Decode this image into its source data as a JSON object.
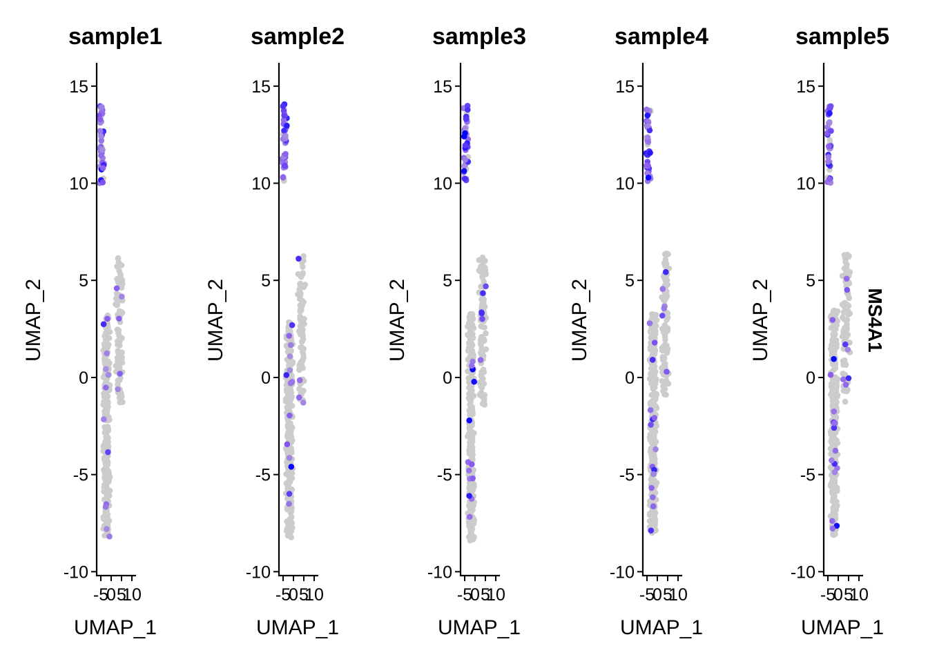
{
  "figure": {
    "feature_label": "MS4A1",
    "colors": {
      "low": "#cccccc",
      "mid": "#8a5cf0",
      "high": "#0000ff",
      "axis": "#000000",
      "background": "#ffffff"
    }
  },
  "chart_data": [
    {
      "type": "scatter",
      "title": "sample1",
      "xlabel": "UMAP_1",
      "ylabel": "UMAP_2",
      "xlim": [
        -7,
        12
      ],
      "ylim": [
        -10.2,
        16.2
      ],
      "x_ticks": [
        -5,
        0,
        5,
        10
      ],
      "x_tick_labels": [
        "-5",
        "0",
        "5",
        "10"
      ],
      "y_ticks": [
        -10,
        -5,
        0,
        5,
        10,
        15
      ],
      "y_tick_labels": [
        "-10",
        "-5",
        "0",
        "5",
        "10",
        "15"
      ],
      "grid": false,
      "color_scale": "grey-to-blue by MS4A1 expression",
      "clusters": [
        {
          "name": "top",
          "x_center": -4.6,
          "x_spread": 1.0,
          "y_min": 10.0,
          "y_max": 14.0,
          "n_points": 45,
          "expressed_fraction": 0.8
        },
        {
          "name": "right",
          "x_center": 3.8,
          "x_spread": 1.4,
          "y_min": -1.3,
          "y_max": 6.3,
          "n_points": 95,
          "expressed_fraction": 0.08
        },
        {
          "name": "lower-left",
          "x_center": -2.2,
          "x_spread": 1.3,
          "y_min": -8.2,
          "y_max": 3.2,
          "n_points": 330,
          "expressed_fraction": 0.05
        }
      ]
    },
    {
      "type": "scatter",
      "title": "sample2",
      "xlabel": "UMAP_1",
      "ylabel": "UMAP_2",
      "xlim": [
        -7,
        12
      ],
      "ylim": [
        -10.2,
        16.2
      ],
      "x_ticks": [
        -5,
        0,
        5,
        10
      ],
      "x_tick_labels": [
        "-5",
        "0",
        "5",
        "10"
      ],
      "y_ticks": [
        -10,
        -5,
        0,
        5,
        10,
        15
      ],
      "y_tick_labels": [
        "-10",
        "-5",
        "0",
        "5",
        "10",
        "15"
      ],
      "grid": false,
      "color_scale": "grey-to-blue by MS4A1 expression",
      "clusters": [
        {
          "name": "top",
          "x_center": -4.4,
          "x_spread": 1.0,
          "y_min": 10.1,
          "y_max": 14.1,
          "n_points": 45,
          "expressed_fraction": 0.8
        },
        {
          "name": "right",
          "x_center": 3.8,
          "x_spread": 1.5,
          "y_min": -1.3,
          "y_max": 6.4,
          "n_points": 95,
          "expressed_fraction": 0.06
        },
        {
          "name": "lower-left",
          "x_center": -2.0,
          "x_spread": 1.4,
          "y_min": -8.3,
          "y_max": 2.9,
          "n_points": 330,
          "expressed_fraction": 0.05
        }
      ]
    },
    {
      "type": "scatter",
      "title": "sample3",
      "xlabel": "UMAP_1",
      "ylabel": "UMAP_2",
      "xlim": [
        -7,
        12
      ],
      "ylim": [
        -10.2,
        16.2
      ],
      "x_ticks": [
        -5,
        0,
        5,
        10
      ],
      "x_tick_labels": [
        "-5",
        "0",
        "5",
        "10"
      ],
      "y_ticks": [
        -10,
        -5,
        0,
        5,
        10,
        15
      ],
      "y_tick_labels": [
        "-10",
        "-5",
        "0",
        "5",
        "10",
        "15"
      ],
      "grid": false,
      "color_scale": "grey-to-blue by MS4A1 expression",
      "clusters": [
        {
          "name": "top",
          "x_center": -4.6,
          "x_spread": 1.0,
          "y_min": 10.1,
          "y_max": 14.2,
          "n_points": 45,
          "expressed_fraction": 0.75
        },
        {
          "name": "right",
          "x_center": 3.6,
          "x_spread": 1.4,
          "y_min": -1.4,
          "y_max": 6.4,
          "n_points": 95,
          "expressed_fraction": 0.05
        },
        {
          "name": "lower-left",
          "x_center": -2.0,
          "x_spread": 1.3,
          "y_min": -8.4,
          "y_max": 3.3,
          "n_points": 330,
          "expressed_fraction": 0.04
        }
      ]
    },
    {
      "type": "scatter",
      "title": "sample4",
      "xlabel": "UMAP_1",
      "ylabel": "UMAP_2",
      "xlim": [
        -7,
        12
      ],
      "ylim": [
        -10.2,
        16.2
      ],
      "x_ticks": [
        -5,
        0,
        5,
        10
      ],
      "x_tick_labels": [
        "-5",
        "0",
        "5",
        "10"
      ],
      "y_ticks": [
        -10,
        -5,
        0,
        5,
        10,
        15
      ],
      "y_tick_labels": [
        "-10",
        "-5",
        "0",
        "5",
        "10",
        "15"
      ],
      "grid": false,
      "color_scale": "grey-to-blue by MS4A1 expression",
      "clusters": [
        {
          "name": "top",
          "x_center": -4.4,
          "x_spread": 1.0,
          "y_min": 10.0,
          "y_max": 13.8,
          "n_points": 45,
          "expressed_fraction": 0.8
        },
        {
          "name": "right",
          "x_center": 3.8,
          "x_spread": 1.5,
          "y_min": -1.0,
          "y_max": 6.4,
          "n_points": 95,
          "expressed_fraction": 0.07
        },
        {
          "name": "lower-left",
          "x_center": -2.0,
          "x_spread": 1.4,
          "y_min": -8.0,
          "y_max": 3.3,
          "n_points": 330,
          "expressed_fraction": 0.05
        }
      ]
    },
    {
      "type": "scatter",
      "title": "sample5",
      "xlabel": "UMAP_1",
      "ylabel": "UMAP_2",
      "xlim": [
        -7,
        12
      ],
      "ylim": [
        -10.2,
        16.2
      ],
      "x_ticks": [
        -5,
        0,
        5,
        10
      ],
      "x_tick_labels": [
        "-5",
        "0",
        "5",
        "10"
      ],
      "y_ticks": [
        -10,
        -5,
        0,
        5,
        10,
        15
      ],
      "y_tick_labels": [
        "-10",
        "-5",
        "0",
        "5",
        "10",
        "15"
      ],
      "grid": false,
      "color_scale": "grey-to-blue by MS4A1 expression",
      "clusters": [
        {
          "name": "top",
          "x_center": -4.4,
          "x_spread": 1.0,
          "y_min": 9.9,
          "y_max": 14.1,
          "n_points": 45,
          "expressed_fraction": 0.85
        },
        {
          "name": "right",
          "x_center": 3.8,
          "x_spread": 1.5,
          "y_min": -1.3,
          "y_max": 6.4,
          "n_points": 95,
          "expressed_fraction": 0.05
        },
        {
          "name": "lower-left",
          "x_center": -2.0,
          "x_spread": 1.4,
          "y_min": -8.3,
          "y_max": 3.5,
          "n_points": 330,
          "expressed_fraction": 0.05
        }
      ]
    }
  ]
}
